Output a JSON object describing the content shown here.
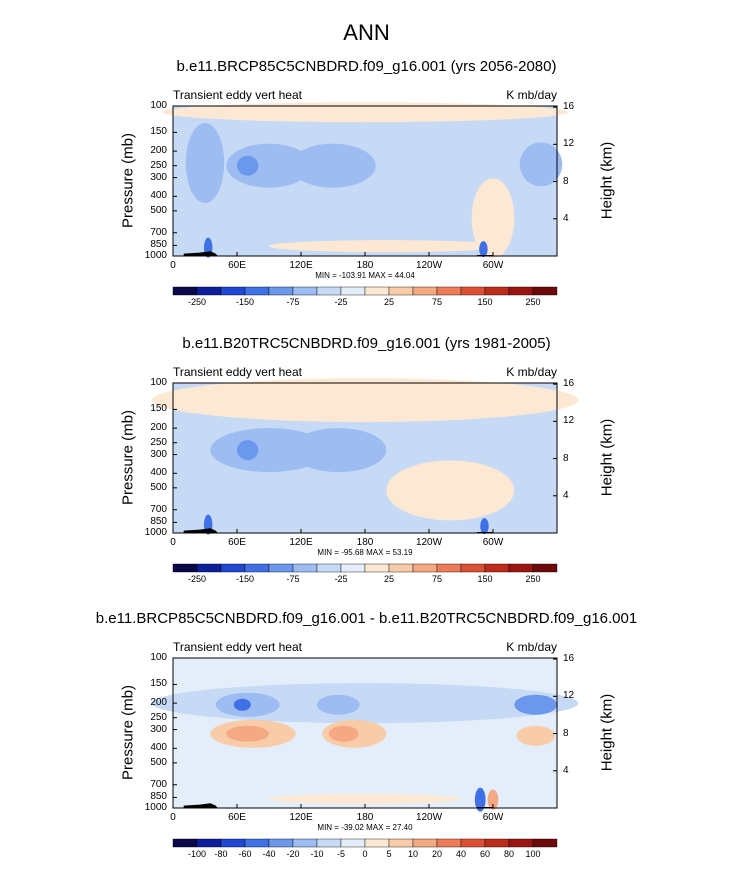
{
  "figure": {
    "main_title": "ANN",
    "left_label": "Transient eddy vert heat",
    "right_label": "K mb/day",
    "left_axis_title": "Pressure (mb)",
    "right_axis_title": "Height (km)"
  },
  "colors": {
    "palette": [
      "#08084a",
      "#0d1f9a",
      "#1f47d4",
      "#3f70e6",
      "#6b97ec",
      "#9dbcf2",
      "#c6daf6",
      "#e3eefa",
      "#fde8d4",
      "#f8cba9",
      "#f4a983",
      "#ee7c58",
      "#dc4f32",
      "#bd2b1d",
      "#9a1512",
      "#6f0a0a"
    ]
  },
  "chart_data": [
    {
      "type": "heatmap",
      "title": "b.e11.BRCP85C5CNBDRD.f09_g16.001 (yrs 2056-2080)",
      "left_label": "Transient eddy vert heat",
      "right_label": "K mb/day",
      "x_ticks": [
        "0",
        "60E",
        "120E",
        "180",
        "120W",
        "60W"
      ],
      "x_range": [
        0,
        360
      ],
      "y_ticks": [
        "100",
        "150",
        "200",
        "250",
        "300",
        "400",
        "500",
        "700",
        "850",
        "1000"
      ],
      "y_range_mb": [
        1000,
        100
      ],
      "height_ticks": [
        "4",
        "8",
        "12",
        "16"
      ],
      "ylabel": "Pressure (mb)",
      "ylabel_right": "Height (km)",
      "min_max": "MIN = -103.91  MAX =  44.04",
      "min": -103.91,
      "max": 44.04,
      "colorbar_labels": [
        "-250",
        "-150",
        "-75",
        "-25",
        "25",
        "75",
        "150",
        "250"
      ]
    },
    {
      "type": "heatmap",
      "title": "b.e11.B20TRC5CNBDRD.f09_g16.001 (yrs 1981-2005)",
      "left_label": "Transient eddy vert heat",
      "right_label": "K mb/day",
      "x_ticks": [
        "0",
        "60E",
        "120E",
        "180",
        "120W",
        "60W"
      ],
      "x_range": [
        0,
        360
      ],
      "y_ticks": [
        "100",
        "150",
        "200",
        "250",
        "300",
        "400",
        "500",
        "700",
        "850",
        "1000"
      ],
      "y_range_mb": [
        1000,
        100
      ],
      "height_ticks": [
        "4",
        "8",
        "12",
        "16"
      ],
      "ylabel": "Pressure (mb)",
      "ylabel_right": "Height (km)",
      "min_max": "MIN = -95.68  MAX =  53.19",
      "min": -95.68,
      "max": 53.19,
      "colorbar_labels": [
        "-250",
        "-150",
        "-75",
        "-25",
        "25",
        "75",
        "150",
        "250"
      ]
    },
    {
      "type": "heatmap",
      "title": "b.e11.BRCP85C5CNBDRD.f09_g16.001 - b.e11.B20TRC5CNBDRD.f09_g16.001",
      "left_label": "Transient eddy vert heat",
      "right_label": "K mb/day",
      "x_ticks": [
        "0",
        "60E",
        "120E",
        "180",
        "120W",
        "60W"
      ],
      "x_range": [
        0,
        360
      ],
      "y_ticks": [
        "100",
        "150",
        "200",
        "250",
        "300",
        "400",
        "500",
        "700",
        "850",
        "1000"
      ],
      "y_range_mb": [
        1000,
        100
      ],
      "height_ticks": [
        "4",
        "8",
        "12",
        "16"
      ],
      "ylabel": "Pressure (mb)",
      "ylabel_right": "Height (km)",
      "min_max": "MIN = -39.02  MAX =  27.40",
      "min": -39.02,
      "max": 27.4,
      "colorbar_labels": [
        "-100",
        "-80",
        "-60",
        "-40",
        "-20",
        "-10",
        "-5",
        "0",
        "5",
        "10",
        "20",
        "40",
        "60",
        "80",
        "100"
      ]
    }
  ]
}
